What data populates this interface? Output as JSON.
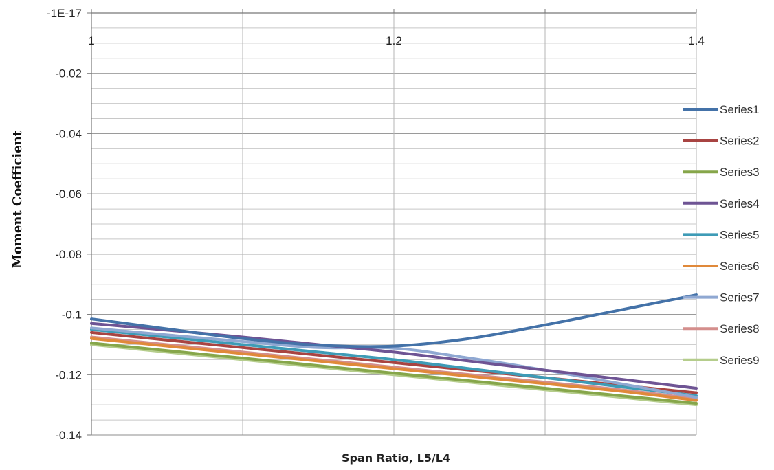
{
  "chart_data": {
    "type": "line",
    "xlabel": "Span Ratio, L5/L4",
    "ylabel": "Moment Coefficient",
    "xlim": [
      1,
      1.4
    ],
    "ylim": [
      -0.14,
      -1e-17
    ],
    "x_ticks": [
      1,
      1.2,
      1.4
    ],
    "x_tick_labels": [
      "1",
      "1.2",
      "1.4"
    ],
    "y_ticks": [
      -1e-17,
      -0.02,
      -0.04,
      -0.06,
      -0.08,
      -0.1,
      -0.12,
      -0.14
    ],
    "y_tick_labels": [
      "-1E-17",
      "-0.02",
      "-0.04",
      "-0.06",
      "-0.08",
      "-0.1",
      "-0.12",
      "-0.14"
    ],
    "x_axis_position": "top",
    "grid": true,
    "legend_position": "right",
    "x": [
      1.0,
      1.05,
      1.1,
      1.15,
      1.2,
      1.25,
      1.3,
      1.35,
      1.4
    ],
    "series": [
      {
        "name": "Series1",
        "color": "#4472a8",
        "values": [
          -0.1015,
          -0.1048,
          -0.108,
          -0.1102,
          -0.1105,
          -0.108,
          -0.1035,
          -0.0985,
          -0.0935
        ]
      },
      {
        "name": "Series2",
        "color": "#a84442",
        "values": [
          -0.106,
          -0.1085,
          -0.111,
          -0.1135,
          -0.116,
          -0.1185,
          -0.121,
          -0.1235,
          -0.126
        ]
      },
      {
        "name": "Series3",
        "color": "#86a64a",
        "values": [
          -0.1095,
          -0.112,
          -0.1145,
          -0.117,
          -0.1195,
          -0.122,
          -0.1245,
          -0.127,
          -0.1295
        ]
      },
      {
        "name": "Series4",
        "color": "#6e5494",
        "values": [
          -0.103,
          -0.1052,
          -0.1075,
          -0.11,
          -0.1125,
          -0.1155,
          -0.1185,
          -0.1215,
          -0.1245
        ]
      },
      {
        "name": "Series5",
        "color": "#3e9bb6",
        "values": [
          -0.105,
          -0.1075,
          -0.11,
          -0.1125,
          -0.115,
          -0.118,
          -0.121,
          -0.124,
          -0.127
        ]
      },
      {
        "name": "Series6",
        "color": "#e0893a",
        "values": [
          -0.108,
          -0.1105,
          -0.113,
          -0.1155,
          -0.118,
          -0.1205,
          -0.123,
          -0.1255,
          -0.1285
        ]
      },
      {
        "name": "Series7",
        "color": "#8fa8d2",
        "values": [
          -0.1045,
          -0.1068,
          -0.109,
          -0.111,
          -0.1112,
          -0.1145,
          -0.1185,
          -0.123,
          -0.1275
        ]
      },
      {
        "name": "Series8",
        "color": "#d48e8c",
        "values": [
          -0.1075,
          -0.11,
          -0.1125,
          -0.115,
          -0.1175,
          -0.12,
          -0.1225,
          -0.125,
          -0.128
        ]
      },
      {
        "name": "Series9",
        "color": "#b5cd8c",
        "values": [
          -0.11,
          -0.1125,
          -0.115,
          -0.1175,
          -0.12,
          -0.1225,
          -0.125,
          -0.1275,
          -0.13
        ]
      }
    ]
  }
}
